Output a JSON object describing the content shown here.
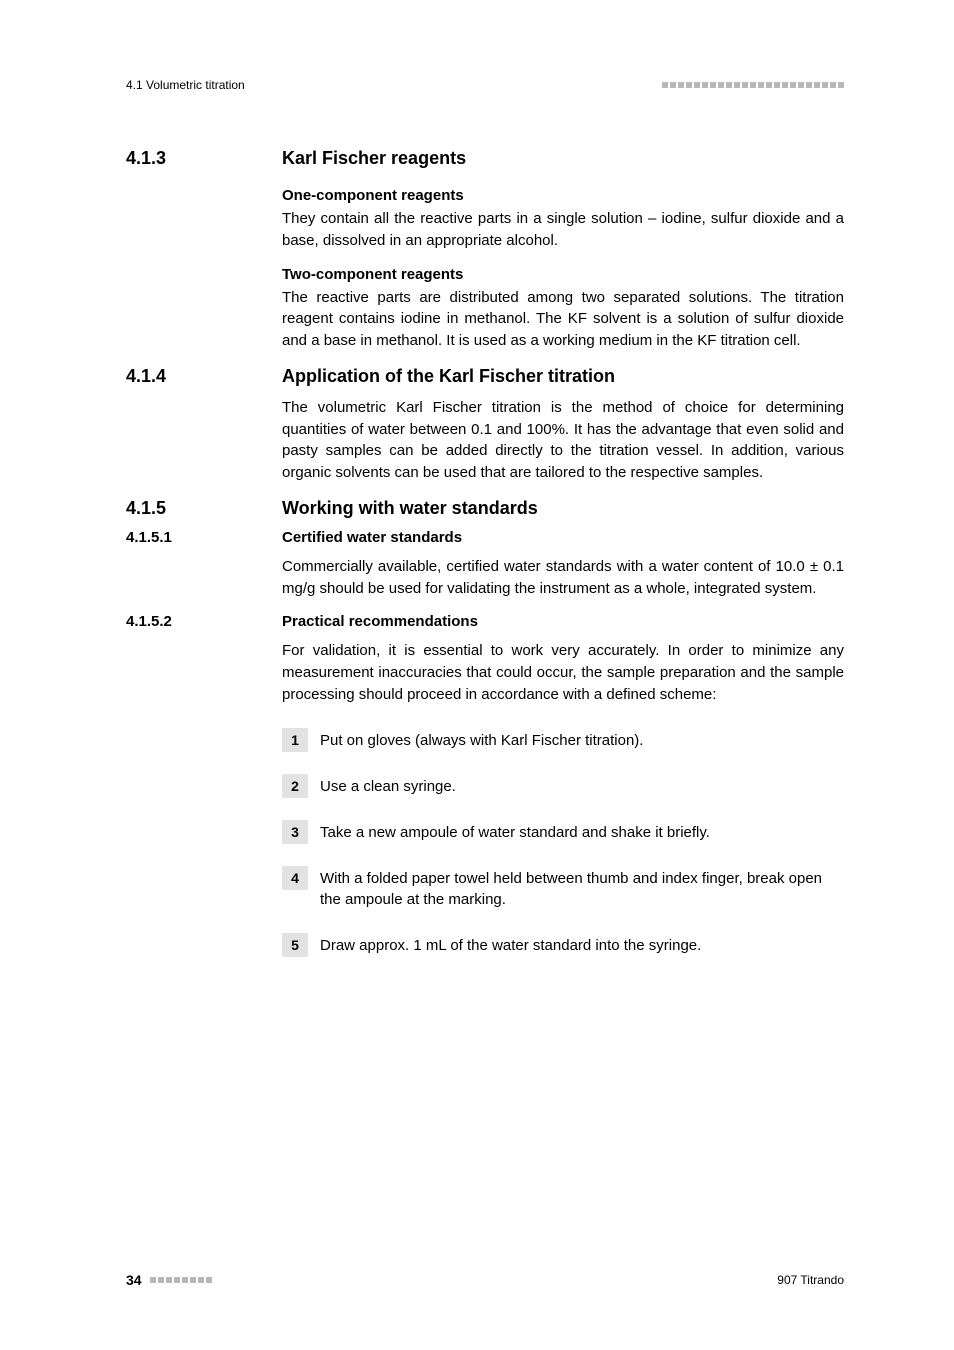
{
  "header": {
    "left": "4.1 Volumetric titration",
    "squares_count": 23
  },
  "sections": {
    "s413": {
      "num": "4.1.3",
      "title": "Karl Fischer reagents"
    },
    "s414": {
      "num": "4.1.4",
      "title": "Application of the Karl Fischer titration"
    },
    "s415": {
      "num": "4.1.5",
      "title": "Working with water standards"
    },
    "s4151": {
      "num": "4.1.5.1",
      "title": "Certified water standards"
    },
    "s4152": {
      "num": "4.1.5.2",
      "title": "Practical recommendations"
    }
  },
  "subheads": {
    "one_comp": "One-component reagents",
    "two_comp": "Two-component reagents"
  },
  "body": {
    "one_comp": "They contain all the reactive parts in a single solution – iodine, sulfur dioxide and a base, dissolved in an appropriate alcohol.",
    "two_comp": "The reactive parts are distributed among two separated solutions. The titration reagent contains iodine in methanol. The KF solvent is a solution of sulfur dioxide and a base in methanol. It is used as a working medium in the KF titration cell.",
    "s414": "The volumetric Karl Fischer titration is the method of choice for determining quantities of water between 0.1 and 100%. It has the advantage that even solid and pasty samples can be added directly to the titration vessel. In addition, various organic solvents can be used that are tailored to the respective samples.",
    "s4151": "Commercially available, certified water standards with a water content of 10.0 ± 0.1 mg/g should be used for validating the instrument as a whole, integrated system.",
    "s4152": "For validation, it is essential to work very accurately. In order to minimize any measurement inaccuracies that could occur, the sample preparation and the sample processing should proceed in accordance with a defined scheme:"
  },
  "steps": {
    "n1": "1",
    "t1": "Put on gloves (always with Karl Fischer titration).",
    "n2": "2",
    "t2": "Use a clean syringe.",
    "n3": "3",
    "t3": "Take a new ampoule of water standard and shake it briefly.",
    "n4": "4",
    "t4": "With a folded paper towel held between thumb and index finger, break open the ampoule at the marking.",
    "n5": "5",
    "t5": "Draw approx. 1 mL of the water standard into the syringe."
  },
  "footer": {
    "page": "34",
    "squares_count": 8,
    "right": "907 Titrando"
  },
  "colors": {
    "square_gray": "#b8b8b8",
    "step_box_bg": "#e2e2e2",
    "text": "#000000",
    "background": "#ffffff"
  }
}
